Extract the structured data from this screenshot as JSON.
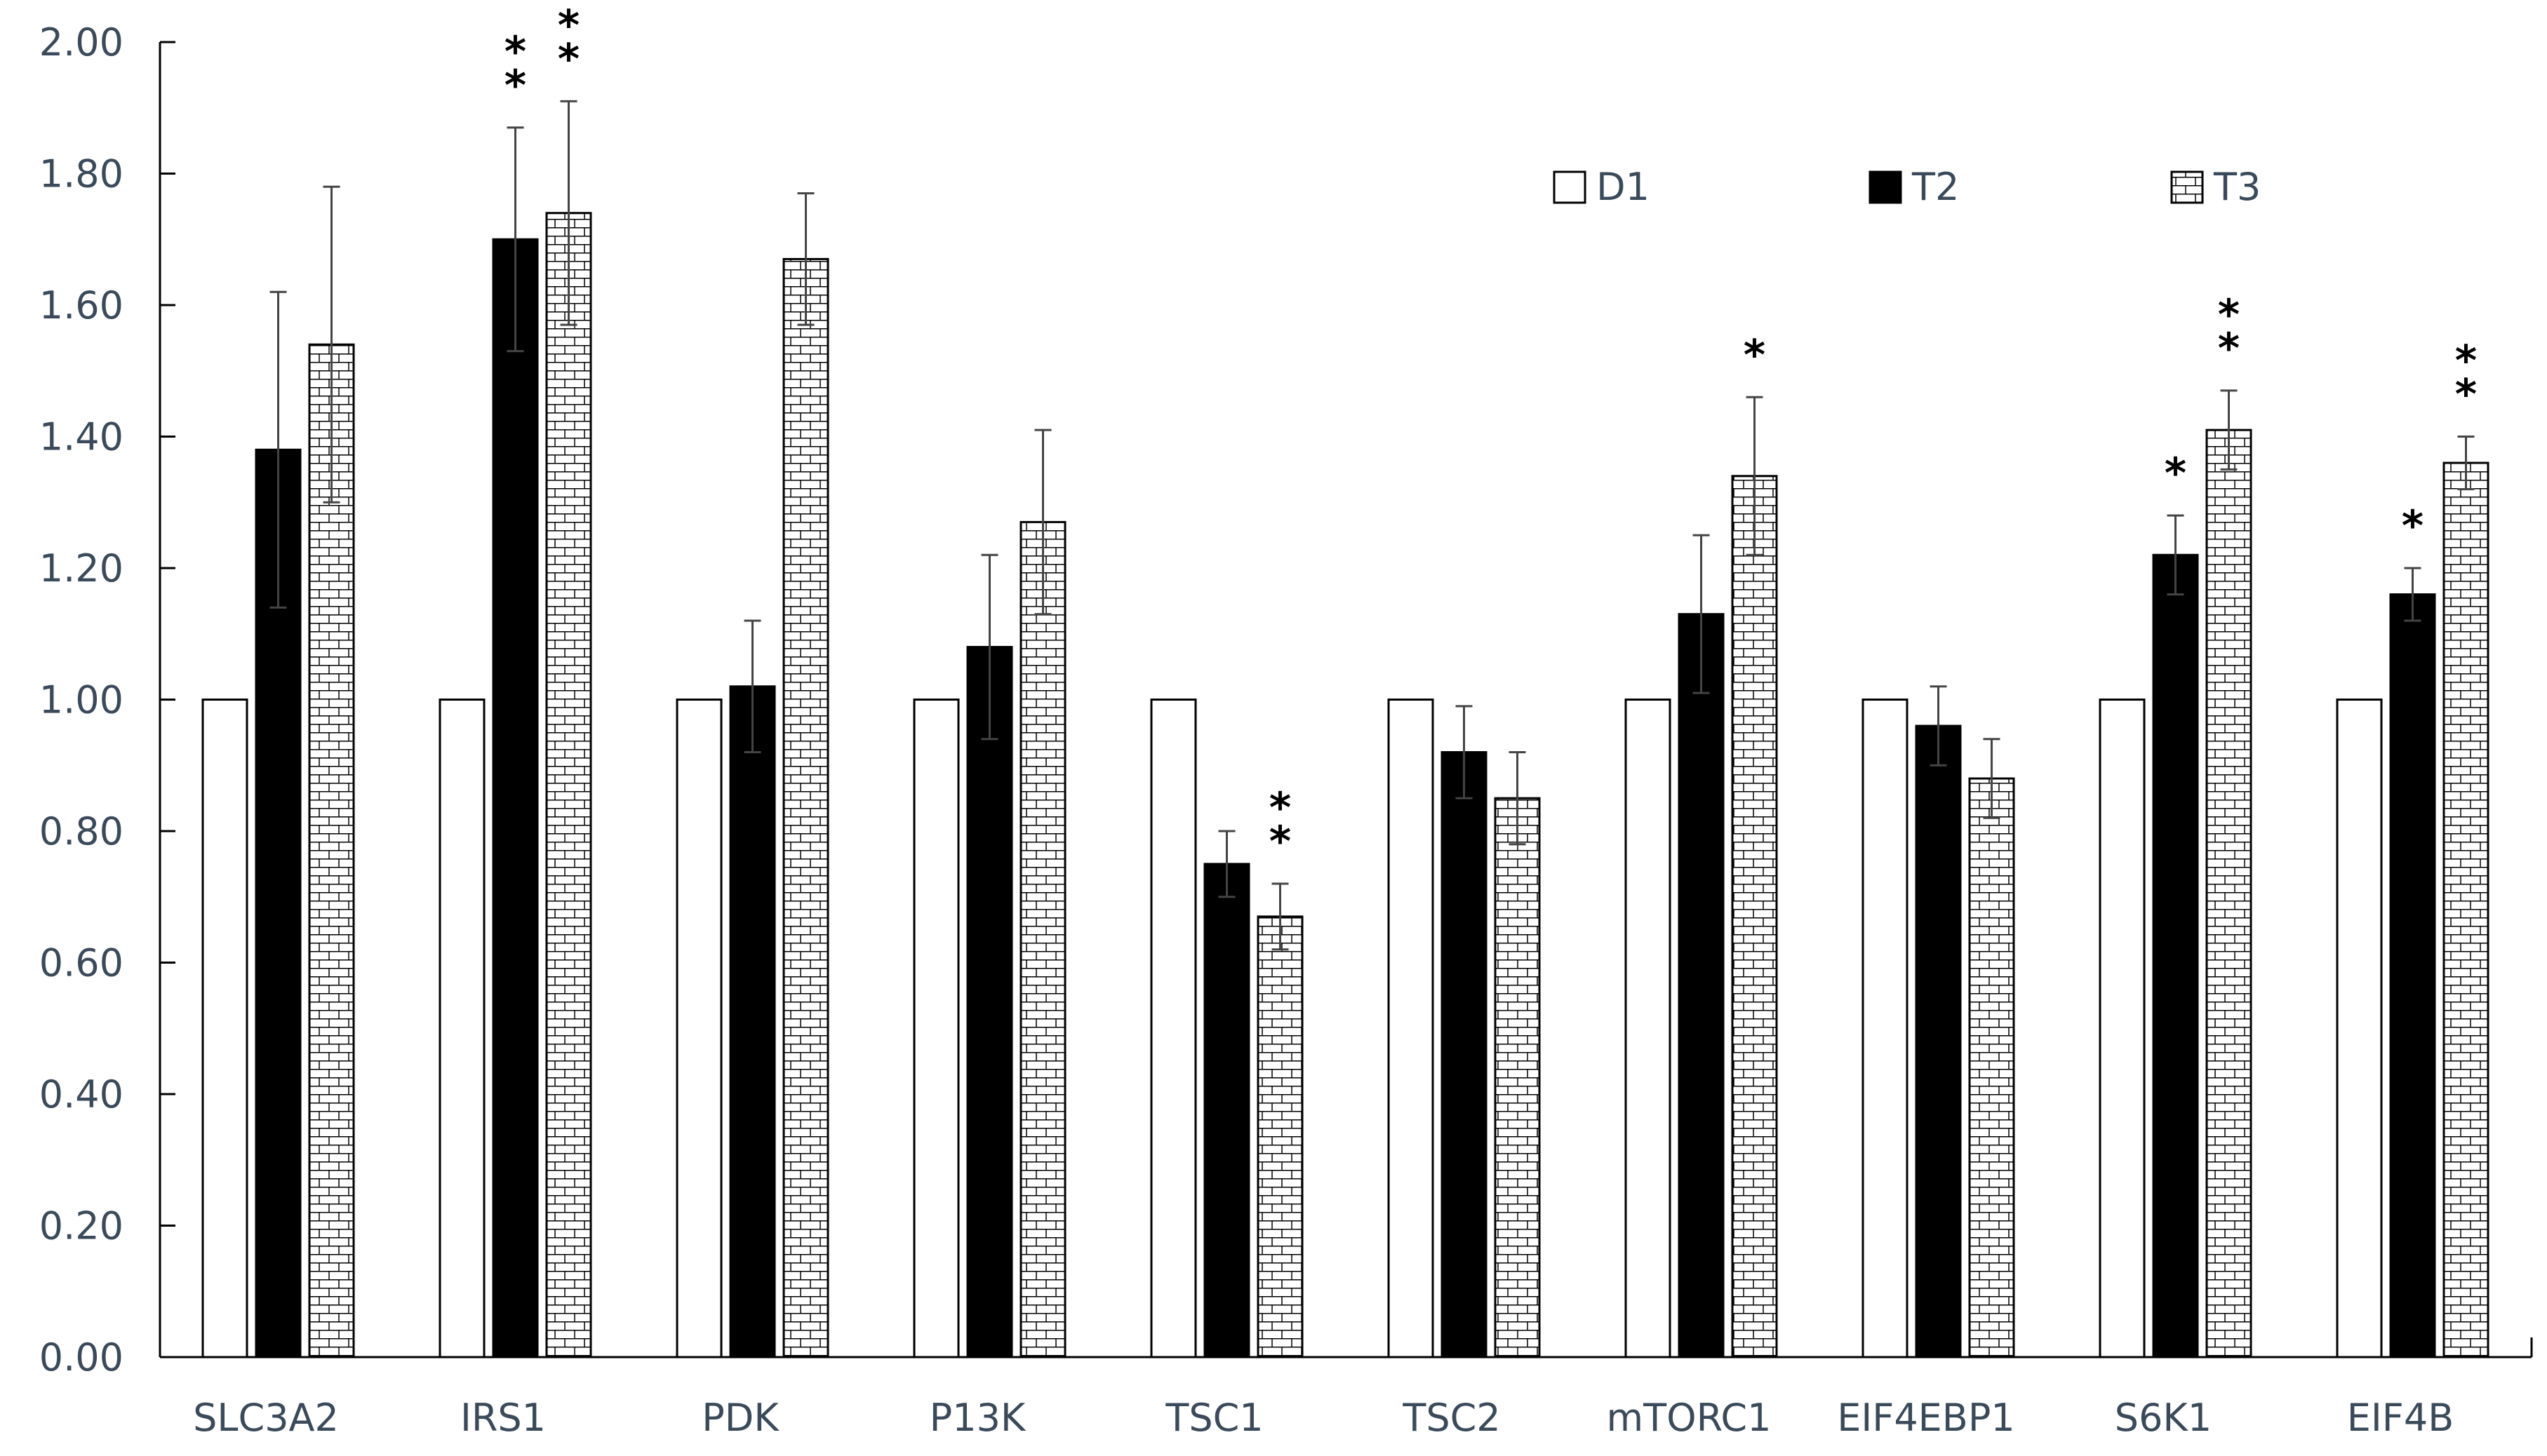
{
  "chart_data": {
    "type": "bar",
    "title": "",
    "xlabel": "",
    "ylabel": "",
    "ylim": [
      0,
      2
    ],
    "yticks": [
      "0.00",
      "0.20",
      "0.40",
      "0.60",
      "0.80",
      "1.00",
      "1.20",
      "1.40",
      "1.60",
      "1.80",
      "2.00"
    ],
    "grid": false,
    "legend_position": "top-right",
    "categories": [
      "SLC3A2",
      "IRS1",
      "PDK",
      "P13K",
      "TSC1",
      "TSC2",
      "mTORC1",
      "EIF4EBP1",
      "S6K1",
      "EIF4B"
    ],
    "series": [
      {
        "name": "D1",
        "color": "#ffffff",
        "pattern": "open",
        "values": [
          1.0,
          1.0,
          1.0,
          1.0,
          1.0,
          1.0,
          1.0,
          1.0,
          1.0,
          1.0
        ],
        "errors": [
          null,
          null,
          null,
          null,
          null,
          null,
          null,
          null,
          null,
          null
        ],
        "significance": [
          "",
          "",
          "",
          "",
          "",
          "",
          "",
          "",
          "",
          ""
        ]
      },
      {
        "name": "T2",
        "color": "#000000",
        "pattern": "solid",
        "values": [
          1.38,
          1.7,
          1.02,
          1.08,
          0.75,
          0.92,
          1.13,
          0.96,
          1.22,
          1.16
        ],
        "errors": [
          0.24,
          0.17,
          0.1,
          0.14,
          0.05,
          0.07,
          0.12,
          0.06,
          0.06,
          0.04
        ],
        "significance": [
          "",
          "**",
          "",
          "",
          "",
          "",
          "",
          "",
          "*",
          "*"
        ]
      },
      {
        "name": "T3",
        "color": "#ffffff",
        "pattern": "brick",
        "values": [
          1.54,
          1.74,
          1.67,
          1.27,
          0.67,
          0.85,
          1.34,
          0.88,
          1.41,
          1.36
        ],
        "errors": [
          0.24,
          0.17,
          0.1,
          0.14,
          0.05,
          0.07,
          0.12,
          0.06,
          0.06,
          0.04
        ],
        "significance": [
          "",
          "**",
          "",
          "",
          "**",
          "",
          "*",
          "",
          "**",
          "**"
        ]
      }
    ]
  }
}
